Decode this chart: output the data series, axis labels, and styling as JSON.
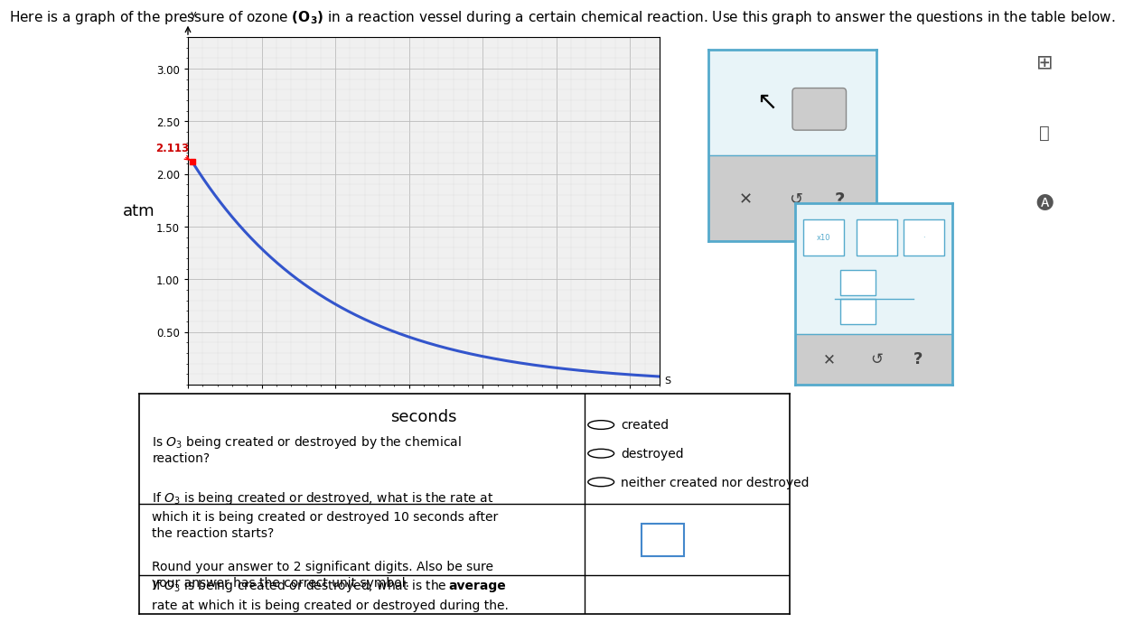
{
  "bg_color": "#ffffff",
  "plot_bg_color": "#f0f0f0",
  "curve_color": "#3355cc",
  "curve_start_x": 0.3,
  "curve_y0": 2.113,
  "decay_constant": 0.105,
  "annotation_value": "2.113",
  "annotation_color": "#cc0000",
  "grid_color": "#bbbbbb",
  "grid_minor_color": "#dddddd",
  "yticks": [
    0.5,
    1.0,
    1.5,
    2.0,
    2.5,
    3.0
  ],
  "ytick_labels": [
    "0.50",
    "1.00",
    "1.50",
    "2.00",
    "2.50",
    "3.00"
  ],
  "xticks": [
    0,
    5,
    10,
    15,
    20,
    25,
    30
  ],
  "xlim": [
    0,
    32
  ],
  "ylim": [
    0,
    3.3
  ],
  "graph_ylabel": "atm",
  "graph_xlabel": "seconds",
  "row1_options": [
    "created",
    "destroyed",
    "neither created nor destroyed"
  ],
  "panel_border_color": "#55aacc",
  "panel_bg_top": "#e8f4f8",
  "panel_bg_bottom": "#cccccc",
  "table_border_color": "#000000",
  "input_box_color": "#4488cc"
}
